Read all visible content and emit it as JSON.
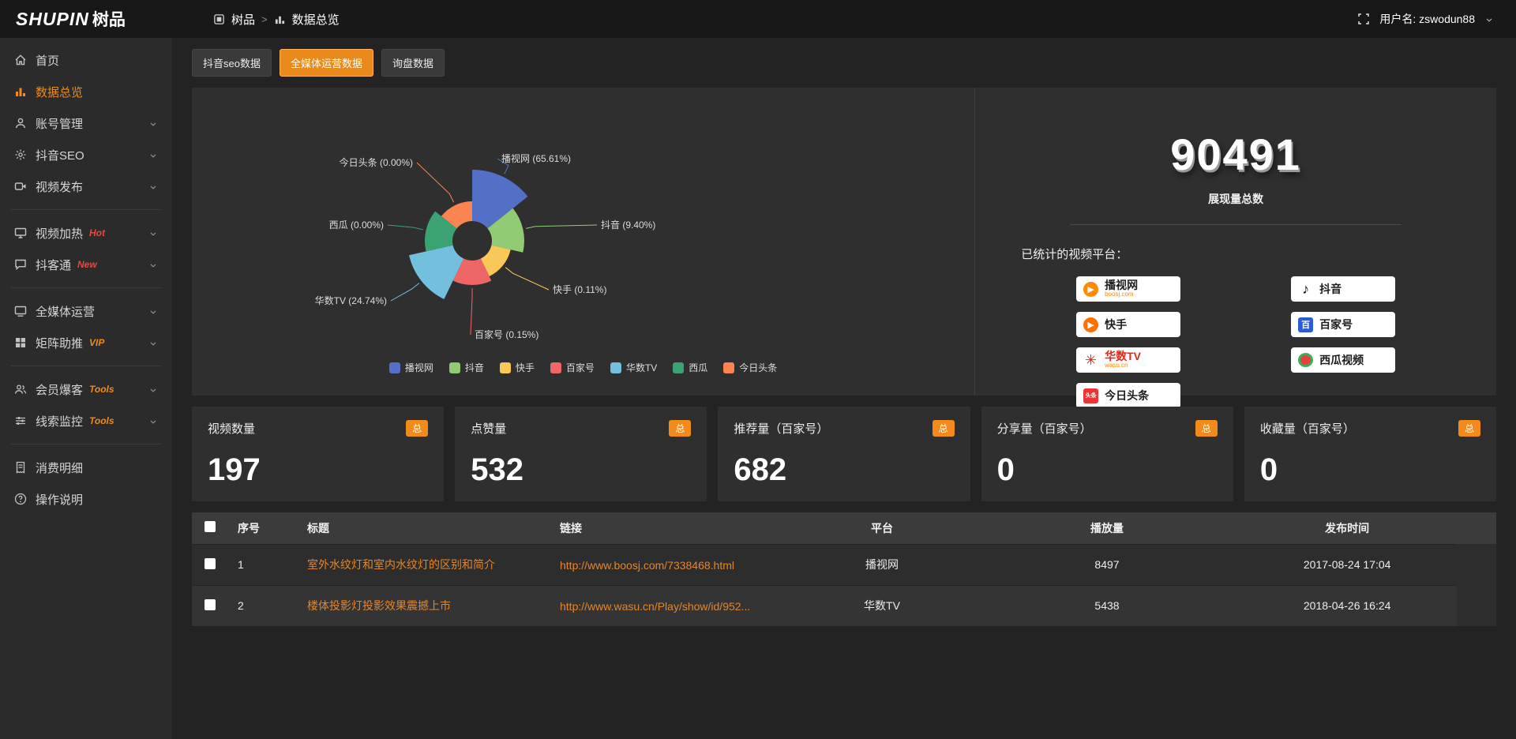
{
  "brand": {
    "logo_en": "SHUPIN",
    "logo_cn": "树品"
  },
  "topbar": {
    "breadcrumb_root": "树品",
    "breadcrumb_separator": ">",
    "breadcrumb_current": "数据总览",
    "username": "用户名: zswodun88"
  },
  "sidebar": {
    "items": [
      {
        "label": "首页",
        "icon": "home"
      },
      {
        "label": "数据总览",
        "icon": "bar-chart",
        "active": true
      },
      {
        "label": "账号管理",
        "icon": "user",
        "chevron": true
      },
      {
        "label": "抖音SEO",
        "icon": "gear",
        "chevron": true
      },
      {
        "label": "视频发布",
        "icon": "video",
        "chevron": true
      },
      {
        "label": "视频加热",
        "icon": "monitor",
        "badge": "Hot",
        "badge_color": "red",
        "chevron": true,
        "divider_before": true
      },
      {
        "label": "抖客通",
        "icon": "chat",
        "badge": "New",
        "badge_color": "red",
        "chevron": true
      },
      {
        "label": "全媒体运营",
        "icon": "display",
        "chevron": true,
        "divider_before": true
      },
      {
        "label": "矩阵助推",
        "icon": "grid",
        "badge": "VIP",
        "badge_color": "orange",
        "chevron": true
      },
      {
        "label": "会员爆客",
        "icon": "users",
        "badge": "Tools",
        "badge_color": "orange",
        "chevron": true,
        "divider_before": true
      },
      {
        "label": "线索监控",
        "icon": "sliders",
        "badge": "Tools",
        "badge_color": "orange",
        "chevron": true
      },
      {
        "label": "消费明细",
        "icon": "receipt",
        "divider_before": true
      },
      {
        "label": "操作说明",
        "icon": "question"
      }
    ]
  },
  "tabs": [
    {
      "label": "抖音seo数据",
      "active": false
    },
    {
      "label": "全媒体运营数据",
      "active": true
    },
    {
      "label": "询盘数据",
      "active": false
    }
  ],
  "chart_data": {
    "type": "pie",
    "variant": "nightingale-rose",
    "title": "",
    "legend_position": "bottom",
    "series": [
      {
        "name": "播视网",
        "percent": 65.61,
        "color": "#5470c6"
      },
      {
        "name": "抖音",
        "percent": 9.4,
        "color": "#91cc75"
      },
      {
        "name": "快手",
        "percent": 0.11,
        "color": "#fac858"
      },
      {
        "name": "百家号",
        "percent": 0.15,
        "color": "#ee6666"
      },
      {
        "name": "华数TV",
        "percent": 24.74,
        "color": "#73c0de"
      },
      {
        "name": "西瓜",
        "percent": 0.0,
        "color": "#3ba272"
      },
      {
        "name": "今日头条",
        "percent": 0.0,
        "color": "#fc8452"
      }
    ],
    "legend": [
      "播视网",
      "抖音",
      "快手",
      "百家号",
      "华数TV",
      "西瓜",
      "今日头条"
    ]
  },
  "summary": {
    "total": "90491",
    "total_label": "展现量总数",
    "platforms_title": "已统计的视频平台：",
    "platforms": [
      {
        "name": "播视网",
        "sub": "boosj.com",
        "icon": "boosj",
        "glyph": "▶",
        "col": "left"
      },
      {
        "name": "快手",
        "icon": "kuaishou",
        "glyph": "▶",
        "col": "left"
      },
      {
        "name": "华数TV",
        "sub": "wasu.cn",
        "icon": "wasu",
        "glyph": "✳",
        "col": "left",
        "name_color": "red"
      },
      {
        "name": "今日头条",
        "icon": "toutiao",
        "glyph": "头条",
        "col": "left"
      },
      {
        "name": "抖音",
        "icon": "douyin",
        "glyph": "♪",
        "col": "right"
      },
      {
        "name": "百家号",
        "icon": "baijiahao",
        "glyph": "百",
        "col": "right"
      },
      {
        "name": "西瓜视频",
        "icon": "xigua",
        "glyph": "",
        "col": "right"
      }
    ]
  },
  "stat_cards": [
    {
      "label": "视频数量",
      "badge": "总",
      "value": "197"
    },
    {
      "label": "点赞量",
      "badge": "总",
      "value": "532"
    },
    {
      "label": "推荐量（百家号）",
      "badge": "总",
      "value": "682"
    },
    {
      "label": "分享量（百家号）",
      "badge": "总",
      "value": "0"
    },
    {
      "label": "收藏量（百家号）",
      "badge": "总",
      "value": "0"
    }
  ],
  "table": {
    "headers": [
      "序号",
      "标题",
      "链接",
      "平台",
      "播放量",
      "发布时间"
    ],
    "rows": [
      {
        "no": "1",
        "title": "室外水纹灯和室内水纹灯的区别和简介",
        "link": "http://www.boosj.com/7338468.html",
        "platform": "播视网",
        "plays": "8497",
        "time": "2017-08-24 17:04"
      },
      {
        "no": "2",
        "title": "楼体投影灯投影效果震撼上市",
        "link": "http://www.wasu.cn/Play/show/id/952...",
        "platform": "华数TV",
        "plays": "5438",
        "time": "2018-04-26 16:24"
      }
    ]
  }
}
